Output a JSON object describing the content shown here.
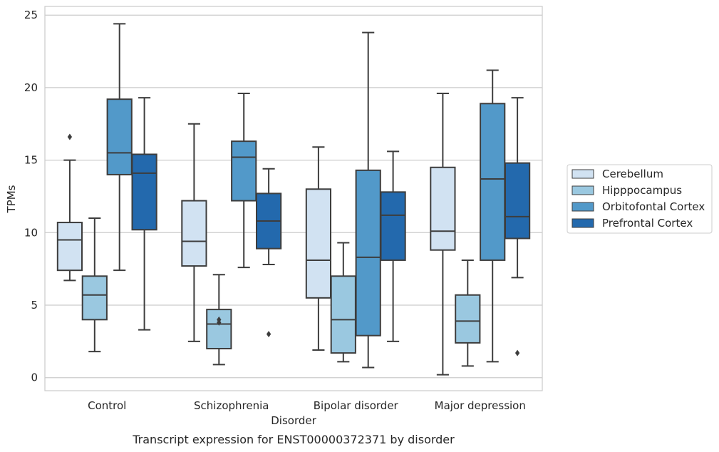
{
  "caption": "Transcript expression for ENST00000372371 by disorder",
  "chart_data": {
    "type": "boxplot",
    "xlabel": "Disorder",
    "ylabel": "TPMs",
    "ylim": [
      -0.9,
      25.6
    ],
    "yticks": [
      0,
      5,
      10,
      15,
      20,
      25
    ],
    "grid": "horizontal",
    "legend_position": "right",
    "categories": [
      "Control",
      "Schizophrenia",
      "Bipolar disorder",
      "Major depression"
    ],
    "series": [
      {
        "name": "Cerebellum",
        "color": "#d1e2f2",
        "boxes": [
          {
            "whislo": 6.7,
            "q1": 7.4,
            "med": 9.5,
            "q3": 10.7,
            "whishi": 15.0,
            "fliers": [
              16.6
            ]
          },
          {
            "whislo": 2.5,
            "q1": 7.7,
            "med": 9.4,
            "q3": 12.2,
            "whishi": 17.5,
            "fliers": []
          },
          {
            "whislo": 1.9,
            "q1": 5.5,
            "med": 8.1,
            "q3": 13.0,
            "whishi": 15.9,
            "fliers": []
          },
          {
            "whislo": 0.2,
            "q1": 8.8,
            "med": 10.1,
            "q3": 14.5,
            "whishi": 19.6,
            "fliers": []
          }
        ]
      },
      {
        "name": "Hipppocampus",
        "color": "#9ac8e0",
        "boxes": [
          {
            "whislo": 1.8,
            "q1": 4.0,
            "med": 5.7,
            "q3": 7.0,
            "whishi": 11.0,
            "fliers": []
          },
          {
            "whislo": 0.9,
            "q1": 2.0,
            "med": 3.7,
            "q3": 4.7,
            "whishi": 7.1,
            "fliers": [
              3.8,
              4.0
            ]
          },
          {
            "whislo": 1.1,
            "q1": 1.7,
            "med": 4.0,
            "q3": 7.0,
            "whishi": 9.3,
            "fliers": []
          },
          {
            "whislo": 0.8,
            "q1": 2.4,
            "med": 3.9,
            "q3": 5.7,
            "whishi": 8.1,
            "fliers": []
          }
        ]
      },
      {
        "name": "Orbitofontal Cortex",
        "color": "#5299c9",
        "boxes": [
          {
            "whislo": 7.4,
            "q1": 14.0,
            "med": 15.5,
            "q3": 19.2,
            "whishi": 24.4,
            "fliers": []
          },
          {
            "whislo": 7.6,
            "q1": 12.2,
            "med": 15.2,
            "q3": 16.3,
            "whishi": 19.6,
            "fliers": []
          },
          {
            "whislo": 0.7,
            "q1": 2.9,
            "med": 8.3,
            "q3": 14.3,
            "whishi": 23.8,
            "fliers": []
          },
          {
            "whislo": 1.1,
            "q1": 8.1,
            "med": 13.7,
            "q3": 18.9,
            "whishi": 21.2,
            "fliers": []
          }
        ]
      },
      {
        "name": "Prefrontal Cortex",
        "color": "#2369ad",
        "boxes": [
          {
            "whislo": 3.3,
            "q1": 10.2,
            "med": 14.1,
            "q3": 15.4,
            "whishi": 19.3,
            "fliers": []
          },
          {
            "whislo": 7.8,
            "q1": 8.9,
            "med": 10.8,
            "q3": 12.7,
            "whishi": 14.4,
            "fliers": [
              3.0
            ]
          },
          {
            "whislo": 2.5,
            "q1": 8.1,
            "med": 11.2,
            "q3": 12.8,
            "whishi": 15.6,
            "fliers": []
          },
          {
            "whislo": 6.9,
            "q1": 9.6,
            "med": 11.1,
            "q3": 14.8,
            "whishi": 19.3,
            "fliers": [
              1.7
            ]
          }
        ]
      }
    ]
  }
}
